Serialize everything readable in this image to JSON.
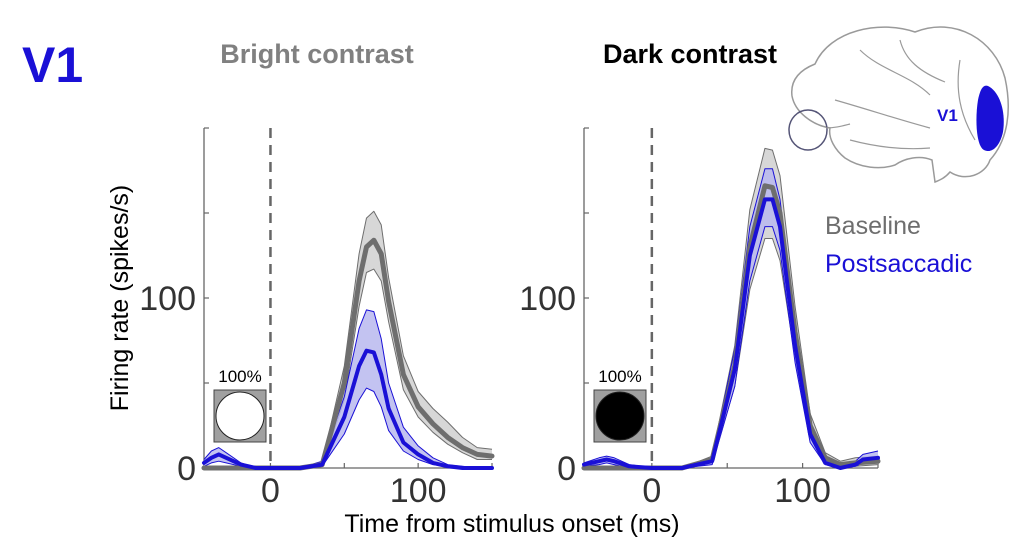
{
  "region_label": "V1",
  "brain_area_label": "V1",
  "colors": {
    "baseline": "#6e6e6e",
    "baseline_band": "#d0d0d0",
    "postsaccadic": "#1a10d6",
    "postsaccadic_band": "#b9b9ee",
    "title_bright": "#808080",
    "title_dark": "#000000",
    "region": "#1a10d6"
  },
  "legend": {
    "position": "right",
    "baseline": "Baseline",
    "postsaccadic": "Postsaccadic"
  },
  "chart_data": [
    {
      "type": "line",
      "title": "Bright contrast",
      "ylabel": "Firing rate (spikes/s)",
      "xlabel": "Time from stimulus onset (ms)",
      "xlim": [
        -45,
        150
      ],
      "ylim": [
        0,
        200
      ],
      "xticks": [
        "0",
        "100"
      ],
      "yticks": [
        "0",
        "100"
      ],
      "reference_line_x": 0,
      "stimulus_inset": {
        "label": "100%",
        "disc": "white"
      },
      "series": [
        {
          "name": "Baseline",
          "x": [
            -45,
            -30,
            -10,
            0,
            20,
            35,
            50,
            60,
            65,
            70,
            75,
            80,
            90,
            100,
            110,
            120,
            130,
            140,
            150
          ],
          "y": [
            0,
            0,
            0,
            0,
            0,
            2,
            50,
            110,
            130,
            134,
            126,
            98,
            55,
            36,
            26,
            18,
            12,
            8,
            7
          ],
          "lower": [
            0,
            0,
            0,
            0,
            0,
            1,
            40,
            95,
            115,
            117,
            110,
            86,
            46,
            30,
            21,
            14,
            9,
            5,
            5
          ],
          "upper": [
            0,
            0,
            0,
            0,
            0,
            3,
            60,
            126,
            147,
            151,
            143,
            112,
            66,
            45,
            35,
            27,
            18,
            12,
            11
          ]
        },
        {
          "name": "Postsaccadic",
          "x": [
            -45,
            -40,
            -35,
            -30,
            -20,
            -10,
            0,
            20,
            35,
            50,
            60,
            65,
            70,
            75,
            80,
            90,
            100,
            110,
            120,
            130,
            140,
            150
          ],
          "y": [
            3,
            6,
            8,
            6,
            2,
            0,
            0,
            0,
            2,
            30,
            60,
            69,
            68,
            55,
            35,
            15,
            8,
            3,
            1,
            0,
            0,
            0
          ],
          "lower": [
            1,
            3,
            4,
            3,
            1,
            0,
            0,
            0,
            1,
            20,
            40,
            47,
            45,
            36,
            22,
            10,
            5,
            2,
            1,
            0,
            0,
            0
          ],
          "upper": [
            5,
            10,
            12,
            9,
            3,
            0,
            0,
            0,
            4,
            42,
            82,
            93,
            92,
            76,
            50,
            24,
            13,
            6,
            2,
            1,
            0,
            0
          ]
        }
      ]
    },
    {
      "type": "line",
      "title": "Dark contrast",
      "ylabel": "",
      "xlabel": "",
      "xlim": [
        -45,
        150
      ],
      "ylim": [
        0,
        200
      ],
      "xticks": [
        "0",
        "100"
      ],
      "yticks": [
        "0",
        "100"
      ],
      "reference_line_x": 0,
      "stimulus_inset": {
        "label": "100%",
        "disc": "black"
      },
      "series": [
        {
          "name": "Baseline",
          "x": [
            -45,
            -30,
            -10,
            0,
            20,
            40,
            55,
            65,
            75,
            80,
            85,
            95,
            105,
            115,
            125,
            135,
            150
          ],
          "y": [
            0,
            0,
            0,
            0,
            0,
            5,
            60,
            130,
            166,
            165,
            150,
            80,
            25,
            6,
            2,
            3,
            4
          ],
          "lower": [
            0,
            0,
            0,
            0,
            0,
            3,
            48,
            105,
            135,
            135,
            122,
            65,
            18,
            4,
            1,
            1,
            2
          ],
          "upper": [
            0,
            0,
            0,
            0,
            0,
            7,
            72,
            152,
            188,
            187,
            172,
            95,
            32,
            9,
            4,
            6,
            7
          ]
        },
        {
          "name": "Postsaccadic",
          "x": [
            -45,
            -35,
            -30,
            -25,
            -15,
            0,
            20,
            40,
            55,
            65,
            75,
            80,
            85,
            95,
            105,
            115,
            125,
            135,
            140,
            150
          ],
          "y": [
            2,
            4,
            5,
            4,
            1,
            0,
            0,
            4,
            58,
            125,
            158,
            158,
            142,
            72,
            20,
            3,
            0,
            2,
            5,
            6
          ],
          "lower": [
            1,
            2,
            3,
            2,
            0,
            0,
            0,
            2,
            48,
            110,
            142,
            142,
            128,
            62,
            15,
            2,
            0,
            1,
            3,
            4
          ],
          "upper": [
            3,
            6,
            7,
            6,
            2,
            0,
            0,
            6,
            70,
            142,
            176,
            176,
            158,
            84,
            26,
            5,
            1,
            4,
            8,
            10
          ]
        }
      ]
    }
  ]
}
